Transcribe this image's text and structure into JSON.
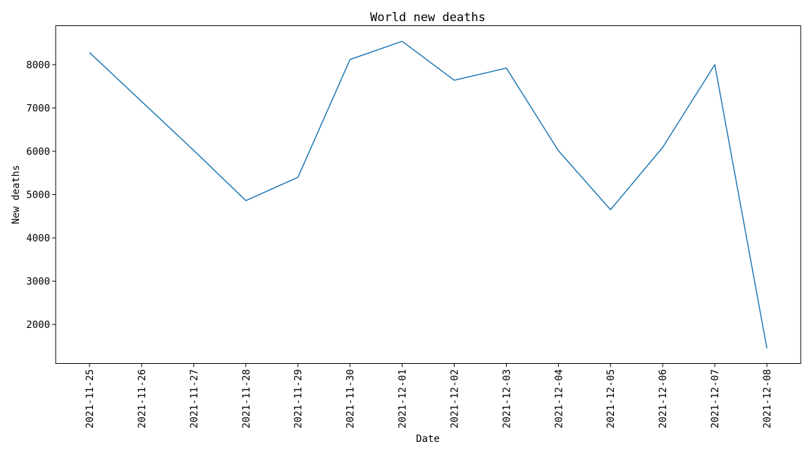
{
  "chart_data": {
    "type": "line",
    "title": "World new deaths",
    "xlabel": "Date",
    "ylabel": "New deaths",
    "categories": [
      "2021-11-25",
      "2021-11-26",
      "2021-11-27",
      "2021-11-28",
      "2021-11-29",
      "2021-11-30",
      "2021-12-01",
      "2021-12-02",
      "2021-12-03",
      "2021-12-04",
      "2021-12-05",
      "2021-12-06",
      "2021-12-07",
      "2021-12-08"
    ],
    "series": [
      {
        "values": [
          8280,
          7150,
          6020,
          4860,
          5400,
          8120,
          8540,
          7640,
          7920,
          6010,
          4650,
          6090,
          8000,
          1450
        ],
        "color": "#1f77b4"
      }
    ],
    "ylim": [
      1100,
      8900
    ],
    "yticks": [
      2000,
      3000,
      4000,
      5000,
      6000,
      7000,
      8000
    ],
    "grid": false,
    "legend": "none"
  }
}
